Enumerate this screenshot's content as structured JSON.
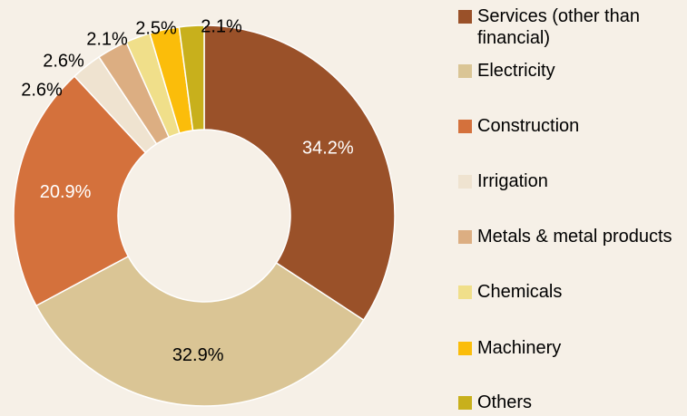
{
  "chart_data": {
    "type": "donut",
    "categories": [
      "Services (other than financial)",
      "Electricity",
      "Construction",
      "Irrigation",
      "Metals & metal products",
      "Chemicals",
      "Machinery",
      "Others"
    ],
    "values": [
      34.2,
      32.9,
      20.9,
      2.6,
      2.6,
      2.1,
      2.5,
      2.1
    ],
    "value_labels": [
      "34.2%",
      "32.9%",
      "20.9%",
      "2.6%",
      "2.6%",
      "2.1%",
      "2.5%",
      "2.1%"
    ],
    "colors": [
      "#9a5129",
      "#dac595",
      "#d4713c",
      "#efe3d0",
      "#dcae82",
      "#f0df8a",
      "#fbbd0a",
      "#c8b01c"
    ],
    "legend": "right"
  }
}
